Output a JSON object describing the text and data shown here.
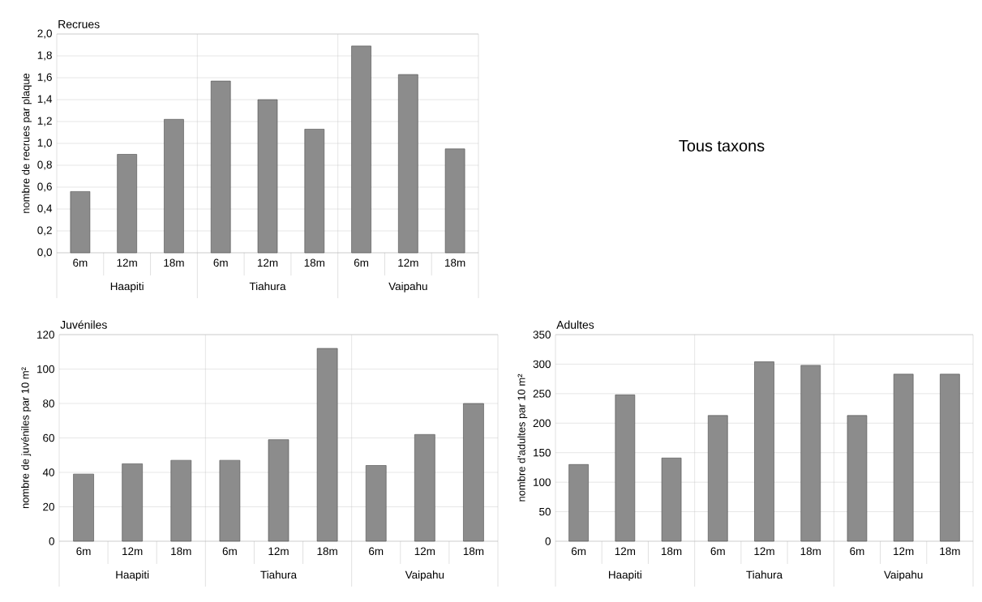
{
  "chart_data": [
    {
      "type": "bar",
      "title": "Recrues",
      "ylabel": "nombre de recrues par plaque",
      "categories": [
        "6m",
        "12m",
        "18m",
        "6m",
        "12m",
        "18m",
        "6m",
        "12m",
        "18m"
      ],
      "values": [
        0.56,
        0.9,
        1.22,
        1.57,
        1.4,
        1.13,
        1.89,
        1.63,
        0.95
      ],
      "color": "#8c8c8c",
      "ylim": [
        0,
        2.0
      ],
      "yticks": [
        {
          "value": 0,
          "label": "0,0"
        },
        {
          "value": 0.2,
          "label": "0,2"
        },
        {
          "value": 0.4,
          "label": "0,4"
        },
        {
          "value": 0.6,
          "label": "0,6"
        },
        {
          "value": 0.8,
          "label": "0,8"
        },
        {
          "value": 1.0,
          "label": "1,0"
        },
        {
          "value": 1.2,
          "label": "1,2"
        },
        {
          "value": 1.4,
          "label": "1,4"
        },
        {
          "value": 1.6,
          "label": "1,6"
        },
        {
          "value": 1.8,
          "label": "1,8"
        },
        {
          "value": 2.0,
          "label": "2,0"
        }
      ],
      "grid": "y",
      "annotations": [
        "Haapiti",
        "Tiahura",
        "Vaipahu"
      ]
    },
    {
      "type": "other",
      "title": "Tous taxons"
    },
    {
      "type": "bar",
      "title": "Juvéniles",
      "ylabel": "nombre de juvéniles par 10 m²",
      "categories": [
        "6m",
        "12m",
        "18m",
        "6m",
        "12m",
        "18m",
        "6m",
        "12m",
        "18m"
      ],
      "values": [
        39,
        45,
        47,
        47,
        59,
        112,
        44,
        62,
        80
      ],
      "color": "#8c8c8c",
      "ylim": [
        0,
        120
      ],
      "yticks": [
        0,
        20,
        40,
        60,
        80,
        100,
        120
      ],
      "grid": "y",
      "annotations": [
        "Haapiti",
        "Tiahura",
        "Vaipahu"
      ]
    },
    {
      "type": "bar",
      "title": "Adultes",
      "ylabel": "nombre d'adultes par 10 m²",
      "categories": [
        "6m",
        "12m",
        "18m",
        "6m",
        "12m",
        "18m",
        "6m",
        "12m",
        "18m"
      ],
      "values": [
        130,
        248,
        141,
        213,
        304,
        298,
        213,
        283,
        283
      ],
      "color": "#8c8c8c",
      "ylim": [
        0,
        350
      ],
      "yticks": [
        0,
        50,
        100,
        150,
        200,
        250,
        300,
        350
      ],
      "grid": "y",
      "annotations": [
        "Haapiti",
        "Tiahura",
        "Vaipahu"
      ]
    }
  ]
}
